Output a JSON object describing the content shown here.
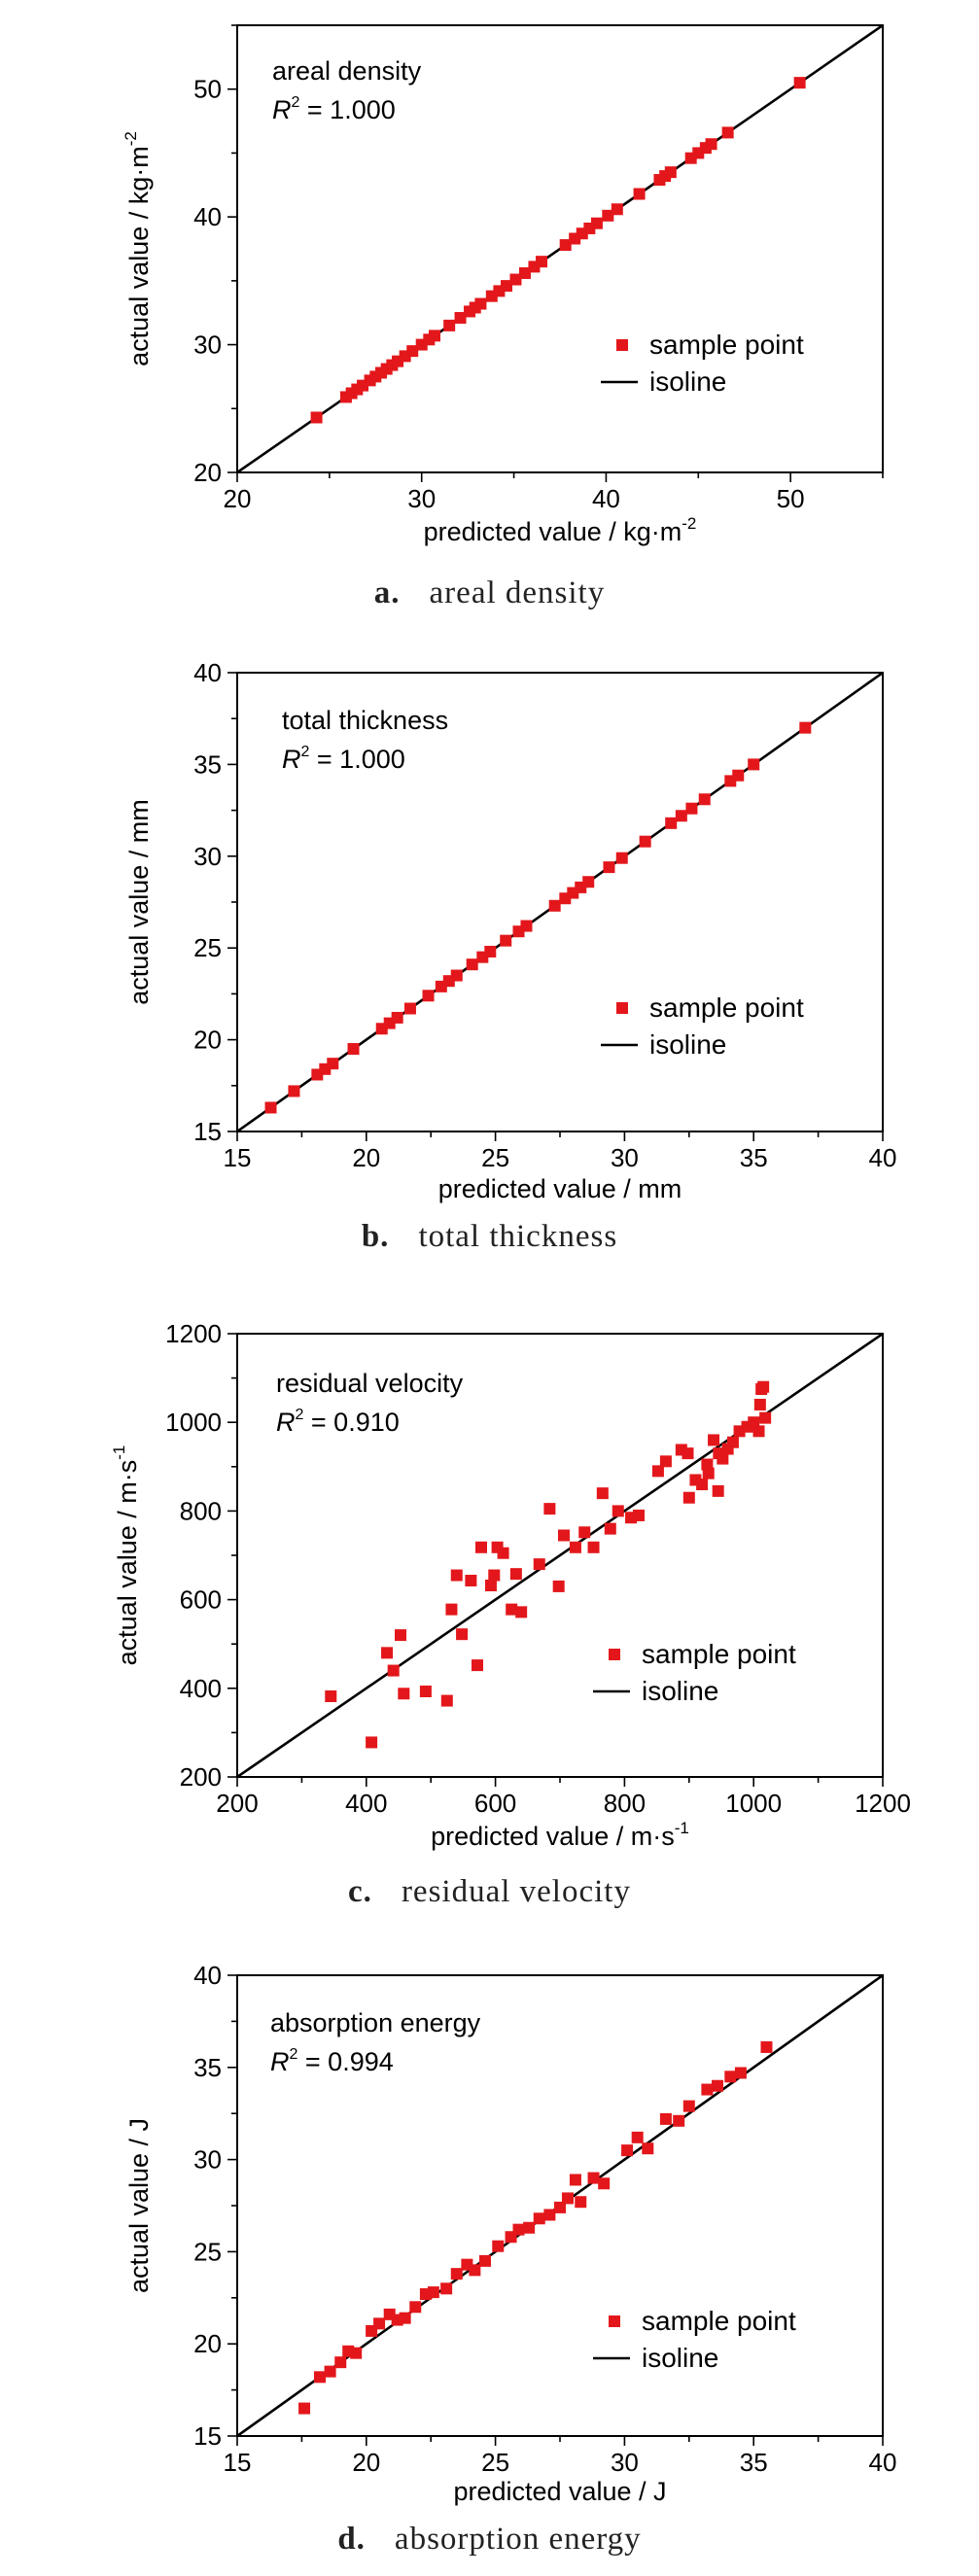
{
  "chart_data": [
    {
      "type": "scatter",
      "caption_letter": "a.",
      "caption": "areal density",
      "annotation_name": "areal density",
      "r2_value": "1.000",
      "xlabel": "predicted value / kg·m",
      "xlabel_sup": "-2",
      "ylabel": "actual value / kg·m",
      "ylabel_sup": "-2",
      "xlim": [
        20,
        55
      ],
      "ylim": [
        20,
        55
      ],
      "xticks": [
        20,
        30,
        40,
        50
      ],
      "yticks": [
        20,
        30,
        40,
        50
      ],
      "minor_step": 5,
      "legend": {
        "points": "sample point",
        "line": "isoline",
        "position": "lower-right"
      },
      "series": [
        {
          "kind": "points",
          "x": [
            24.3,
            25.9,
            26.2,
            26.5,
            26.8,
            27.2,
            27.5,
            27.8,
            28.1,
            28.4,
            28.7,
            29.1,
            29.5,
            30.0,
            30.4,
            30.7,
            31.5,
            32.1,
            32.6,
            32.9,
            33.2,
            33.8,
            34.2,
            34.6,
            35.1,
            35.6,
            36.1,
            36.5,
            37.8,
            38.3,
            38.7,
            39.1,
            39.5,
            40.1,
            40.6,
            41.8,
            42.9,
            43.2,
            43.5,
            44.6,
            45.0,
            45.4,
            45.7,
            46.6,
            50.5
          ],
          "y": [
            24.3,
            25.9,
            26.2,
            26.5,
            26.8,
            27.2,
            27.5,
            27.8,
            28.1,
            28.4,
            28.7,
            29.1,
            29.5,
            30.0,
            30.4,
            30.7,
            31.5,
            32.1,
            32.6,
            32.9,
            33.2,
            33.8,
            34.2,
            34.6,
            35.1,
            35.6,
            36.1,
            36.5,
            37.8,
            38.3,
            38.7,
            39.1,
            39.5,
            40.1,
            40.6,
            41.8,
            42.9,
            43.2,
            43.5,
            44.6,
            45.0,
            45.4,
            45.7,
            46.6,
            50.5
          ]
        },
        {
          "kind": "line",
          "x": [
            20,
            55
          ],
          "y": [
            20,
            55
          ]
        }
      ]
    },
    {
      "type": "scatter",
      "caption_letter": "b.",
      "caption": "total thickness",
      "annotation_name": "total thickness",
      "r2_value": "1.000",
      "xlabel": "predicted value / mm",
      "xlabel_sup": "",
      "ylabel": "actual value / mm",
      "ylabel_sup": "",
      "xlim": [
        15,
        40
      ],
      "ylim": [
        15,
        40
      ],
      "xticks": [
        15,
        20,
        25,
        30,
        35,
        40
      ],
      "yticks": [
        15,
        20,
        25,
        30,
        35,
        40
      ],
      "minor_step": 2.5,
      "legend": {
        "points": "sample point",
        "line": "isoline",
        "position": "lower-right"
      },
      "series": [
        {
          "kind": "points",
          "x": [
            16.3,
            17.2,
            18.1,
            18.4,
            18.7,
            19.5,
            20.6,
            20.9,
            21.2,
            21.7,
            22.4,
            22.9,
            23.2,
            23.5,
            24.1,
            24.5,
            24.8,
            25.4,
            25.9,
            26.2,
            27.3,
            27.7,
            28.0,
            28.3,
            28.6,
            29.4,
            29.9,
            30.8,
            31.8,
            32.2,
            32.6,
            33.1,
            34.1,
            34.4,
            35.0,
            37.0
          ],
          "y": [
            16.3,
            17.2,
            18.1,
            18.4,
            18.7,
            19.5,
            20.6,
            20.9,
            21.2,
            21.7,
            22.4,
            22.9,
            23.2,
            23.5,
            24.1,
            24.5,
            24.8,
            25.4,
            25.9,
            26.2,
            27.3,
            27.7,
            28.0,
            28.3,
            28.6,
            29.4,
            29.9,
            30.8,
            31.8,
            32.2,
            32.6,
            33.1,
            34.1,
            34.4,
            35.0,
            37.0
          ]
        },
        {
          "kind": "line",
          "x": [
            15,
            40
          ],
          "y": [
            15,
            40
          ]
        }
      ]
    },
    {
      "type": "scatter",
      "caption_letter": "c.",
      "caption": "residual velocity",
      "annotation_name": "residual velocity",
      "r2_value": "0.910",
      "xlabel": "predicted value / m·s",
      "xlabel_sup": "-1",
      "ylabel": "actual value / m·s",
      "ylabel_sup": "-1",
      "xlim": [
        200,
        1200
      ],
      "ylim": [
        200,
        1200
      ],
      "xticks": [
        200,
        400,
        600,
        800,
        1000,
        1200
      ],
      "yticks": [
        200,
        400,
        600,
        800,
        1000,
        1200
      ],
      "minor_step": 100,
      "legend": {
        "points": "sample point",
        "line": "isoline",
        "position": "lower-right"
      },
      "series": [
        {
          "kind": "points",
          "x": [
            345,
            408,
            432,
            442,
            453,
            458,
            492,
            525,
            532,
            540,
            548,
            562,
            572,
            578,
            593,
            598,
            603,
            612,
            625,
            632,
            640,
            668,
            684,
            698,
            706,
            724,
            738,
            752,
            766,
            778,
            790,
            810,
            822,
            852,
            864,
            888,
            898,
            910,
            920,
            928,
            938,
            946,
            952,
            960,
            968,
            978,
            990,
            1000,
            1010,
            1015,
            1012,
            1008,
            1018,
            930,
            945,
            900
          ],
          "y": [
            382,
            278,
            480,
            440,
            520,
            388,
            393,
            372,
            578,
            655,
            522,
            643,
            452,
            718,
            632,
            655,
            718,
            705,
            578,
            658,
            572,
            680,
            805,
            630,
            745,
            718,
            752,
            718,
            840,
            760,
            800,
            785,
            790,
            890,
            912,
            938,
            930,
            870,
            860,
            905,
            960,
            930,
            918,
            940,
            955,
            980,
            990,
            1000,
            1040,
            1080,
            1075,
            980,
            1010,
            885,
            845,
            830
          ]
        },
        {
          "kind": "line",
          "x": [
            200,
            1200
          ],
          "y": [
            200,
            1200
          ]
        }
      ]
    },
    {
      "type": "scatter",
      "caption_letter": "d.",
      "caption": "absorption energy",
      "annotation_name": "absorption energy",
      "r2_value": "0.994",
      "xlabel": "predicted value / J",
      "xlabel_sup": "",
      "ylabel": "actual value / J",
      "ylabel_sup": "",
      "xlim": [
        15,
        40
      ],
      "ylim": [
        15,
        40
      ],
      "xticks": [
        15,
        20,
        25,
        30,
        35,
        40
      ],
      "yticks": [
        15,
        20,
        25,
        30,
        35,
        40
      ],
      "minor_step": 2.5,
      "legend": {
        "points": "sample point",
        "line": "isoline",
        "position": "lower-right"
      },
      "series": [
        {
          "kind": "points",
          "x": [
            17.6,
            18.2,
            18.6,
            19.0,
            19.3,
            19.6,
            20.2,
            20.5,
            20.9,
            21.2,
            21.5,
            21.9,
            22.3,
            22.6,
            23.1,
            23.5,
            23.9,
            24.2,
            24.6,
            25.1,
            25.6,
            25.9,
            26.3,
            26.7,
            27.1,
            27.5,
            27.8,
            28.1,
            28.3,
            28.8,
            29.2,
            30.1,
            30.5,
            30.9,
            31.6,
            32.1,
            32.5,
            33.2,
            33.6,
            34.1,
            34.5,
            35.5
          ],
          "y": [
            16.5,
            18.2,
            18.5,
            19.0,
            19.6,
            19.5,
            20.7,
            21.1,
            21.6,
            21.3,
            21.4,
            22.0,
            22.7,
            22.8,
            23.0,
            23.8,
            24.3,
            24.0,
            24.5,
            25.3,
            25.8,
            26.2,
            26.3,
            26.8,
            27.0,
            27.4,
            27.9,
            28.9,
            27.7,
            29.0,
            28.7,
            30.5,
            31.2,
            30.6,
            32.2,
            32.1,
            32.9,
            33.8,
            34.0,
            34.5,
            34.7,
            36.1
          ]
        },
        {
          "kind": "line",
          "x": [
            15,
            40
          ],
          "y": [
            15,
            40
          ]
        }
      ]
    }
  ]
}
